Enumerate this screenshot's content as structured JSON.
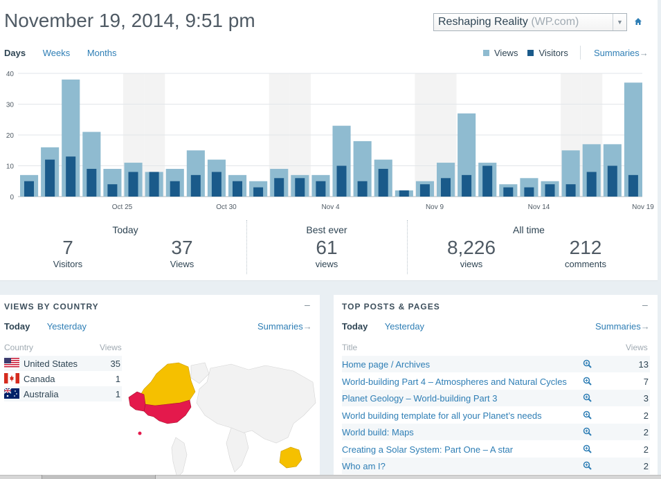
{
  "header": {
    "date_title": "November 19, 2014, 9:51 pm",
    "site_name": "Reshaping Reality",
    "site_domain": "(WP.com)"
  },
  "period_tabs": [
    {
      "label": "Days",
      "active": true
    },
    {
      "label": "Weeks",
      "active": false
    },
    {
      "label": "Months",
      "active": false
    }
  ],
  "legend": {
    "views_label": "Views",
    "visitors_label": "Visitors",
    "views_color": "#8fbbd0",
    "visitors_color": "#1a5a8a",
    "summaries_label": "Summaries"
  },
  "chart_data": {
    "type": "bar",
    "categories": [
      "Oct 20",
      "Oct 21",
      "Oct 22",
      "Oct 23",
      "Oct 24",
      "Oct 25",
      "Oct 26",
      "Oct 27",
      "Oct 28",
      "Oct 29",
      "Oct 30",
      "Oct 31",
      "Nov 1",
      "Nov 2",
      "Nov 3",
      "Nov 4",
      "Nov 5",
      "Nov 6",
      "Nov 7",
      "Nov 8",
      "Nov 9",
      "Nov 10",
      "Nov 11",
      "Nov 12",
      "Nov 13",
      "Nov 14",
      "Nov 15",
      "Nov 16",
      "Nov 17",
      "Nov 18",
      "Nov 19"
    ],
    "tick_labels": [
      {
        "index": 5,
        "label": "Oct 25"
      },
      {
        "index": 10,
        "label": "Oct 30"
      },
      {
        "index": 15,
        "label": "Nov 4"
      },
      {
        "index": 20,
        "label": "Nov 9"
      },
      {
        "index": 25,
        "label": "Nov 14"
      },
      {
        "index": 30,
        "label": "Nov 19"
      }
    ],
    "weekend_indices": [
      5,
      6,
      12,
      13,
      19,
      20,
      26,
      27
    ],
    "series": [
      {
        "name": "Views",
        "color": "#8fbbd0",
        "values": [
          7,
          16,
          38,
          21,
          9,
          11,
          8,
          9,
          15,
          12,
          7,
          5,
          9,
          7,
          7,
          23,
          18,
          12,
          2,
          5,
          11,
          27,
          11,
          4,
          6,
          5,
          15,
          17,
          17,
          37,
          null
        ]
      },
      {
        "name": "Visitors",
        "color": "#1a5a8a",
        "values": [
          5,
          12,
          13,
          9,
          4,
          8,
          8,
          5,
          7,
          8,
          5,
          3,
          6,
          6,
          5,
          10,
          5,
          9,
          2,
          4,
          6,
          7,
          10,
          3,
          3,
          4,
          4,
          8,
          10,
          7,
          null
        ]
      }
    ],
    "yticks": [
      0,
      10,
      20,
      30,
      40
    ],
    "ylim": [
      0,
      40
    ],
    "grid": true
  },
  "stats": {
    "today_title": "Today",
    "today_visitors": "7",
    "today_visitors_label": "Visitors",
    "today_views": "37",
    "today_views_label": "Views",
    "best_title": "Best ever",
    "best_views": "61",
    "best_views_label": "views",
    "alltime_title": "All time",
    "alltime_views": "8,226",
    "alltime_views_label": "views",
    "alltime_comments": "212",
    "alltime_comments_label": "comments"
  },
  "country_card": {
    "title": "VIEWS BY COUNTRY",
    "minimize": "–",
    "tab_today": "Today",
    "tab_yesterday": "Yesterday",
    "summaries_label": "Summaries",
    "col_country": "Country",
    "col_views": "Views",
    "rows": [
      {
        "name": "United States",
        "views": "35",
        "flag": "us-flag-icon"
      },
      {
        "name": "Canada",
        "views": "1",
        "flag": "canada-flag-icon"
      },
      {
        "name": "Australia",
        "views": "1",
        "flag": "australia-flag-icon"
      }
    ],
    "map_colors": {
      "high": "#e4194c",
      "low": "#f5c000",
      "none": "#f2f2f2"
    }
  },
  "posts_card": {
    "title": "TOP POSTS & PAGES",
    "minimize": "–",
    "tab_today": "Today",
    "tab_yesterday": "Yesterday",
    "summaries_label": "Summaries",
    "col_title": "Title",
    "col_views": "Views",
    "rows": [
      {
        "title": "Home page / Archives",
        "views": "13"
      },
      {
        "title": "World-building Part 4 – Atmospheres and Natural Cycles",
        "views": "7"
      },
      {
        "title": "Planet Geology – World-building Part 3",
        "views": "3"
      },
      {
        "title": "World building template for all your Planet’s needs",
        "views": "2"
      },
      {
        "title": "World build: Maps",
        "views": "2"
      },
      {
        "title": "Creating a Solar System: Part One – A star",
        "views": "2"
      },
      {
        "title": "Who am I?",
        "views": "2"
      }
    ]
  }
}
